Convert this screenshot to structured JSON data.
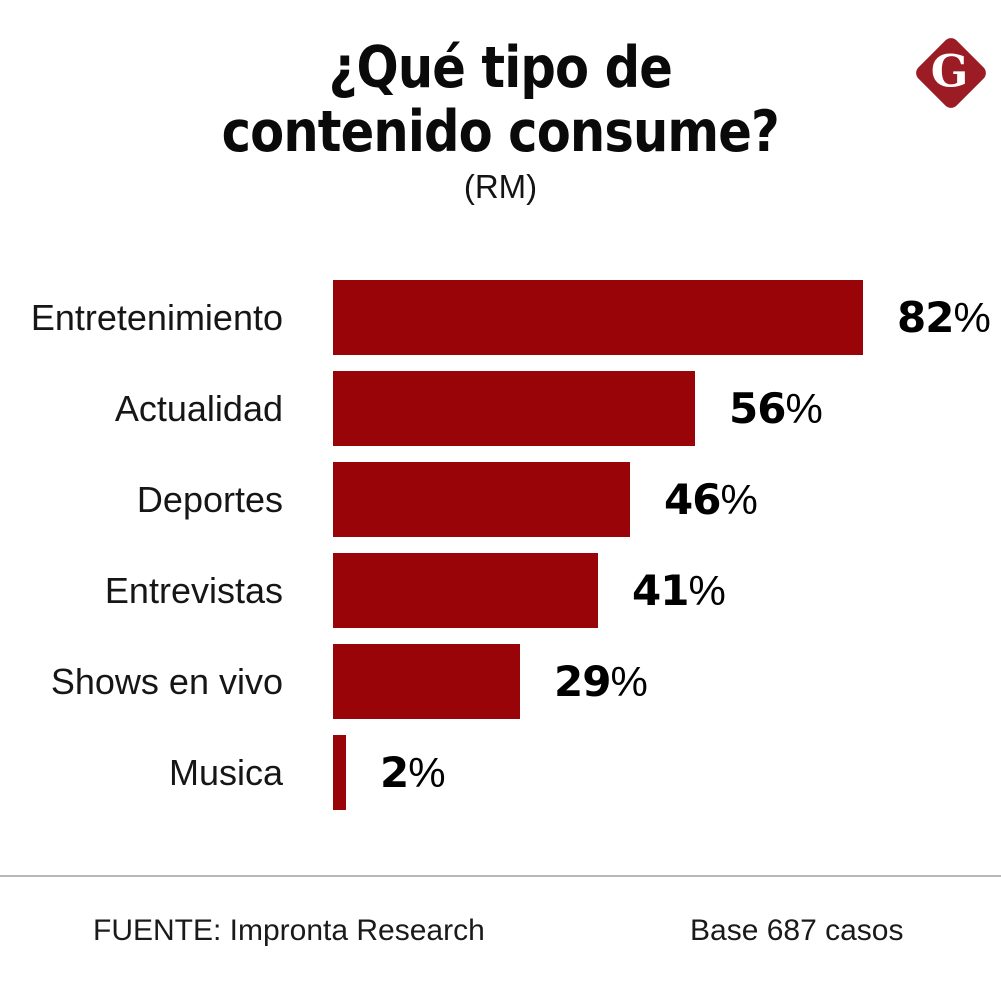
{
  "title": {
    "line1": "¿Qué tipo de",
    "line2": "contenido consume?",
    "subtitle": "(RM)"
  },
  "logo": {
    "letter": "G",
    "color": "#9B1C24"
  },
  "chart_data": {
    "type": "bar",
    "orientation": "horizontal",
    "title": "¿Qué tipo de contenido consume?",
    "subtitle": "(RM)",
    "categories": [
      "Entretenimiento",
      "Actualidad",
      "Deportes",
      "Entrevistas",
      "Shows en vivo",
      "Musica"
    ],
    "values": [
      82,
      56,
      46,
      41,
      29,
      2
    ],
    "unit": "%",
    "xlim": [
      0,
      100
    ],
    "bar_color": "#990409",
    "grid": false,
    "legend": false,
    "value_labels": "bold, right of bar end"
  },
  "footer": {
    "source": "FUENTE: Impronta Research",
    "base": "Base 687 casos"
  },
  "colors": {
    "bar": "#990409",
    "logo": "#9B1C24",
    "divider": "#B8B8B8",
    "text": "#111111"
  }
}
